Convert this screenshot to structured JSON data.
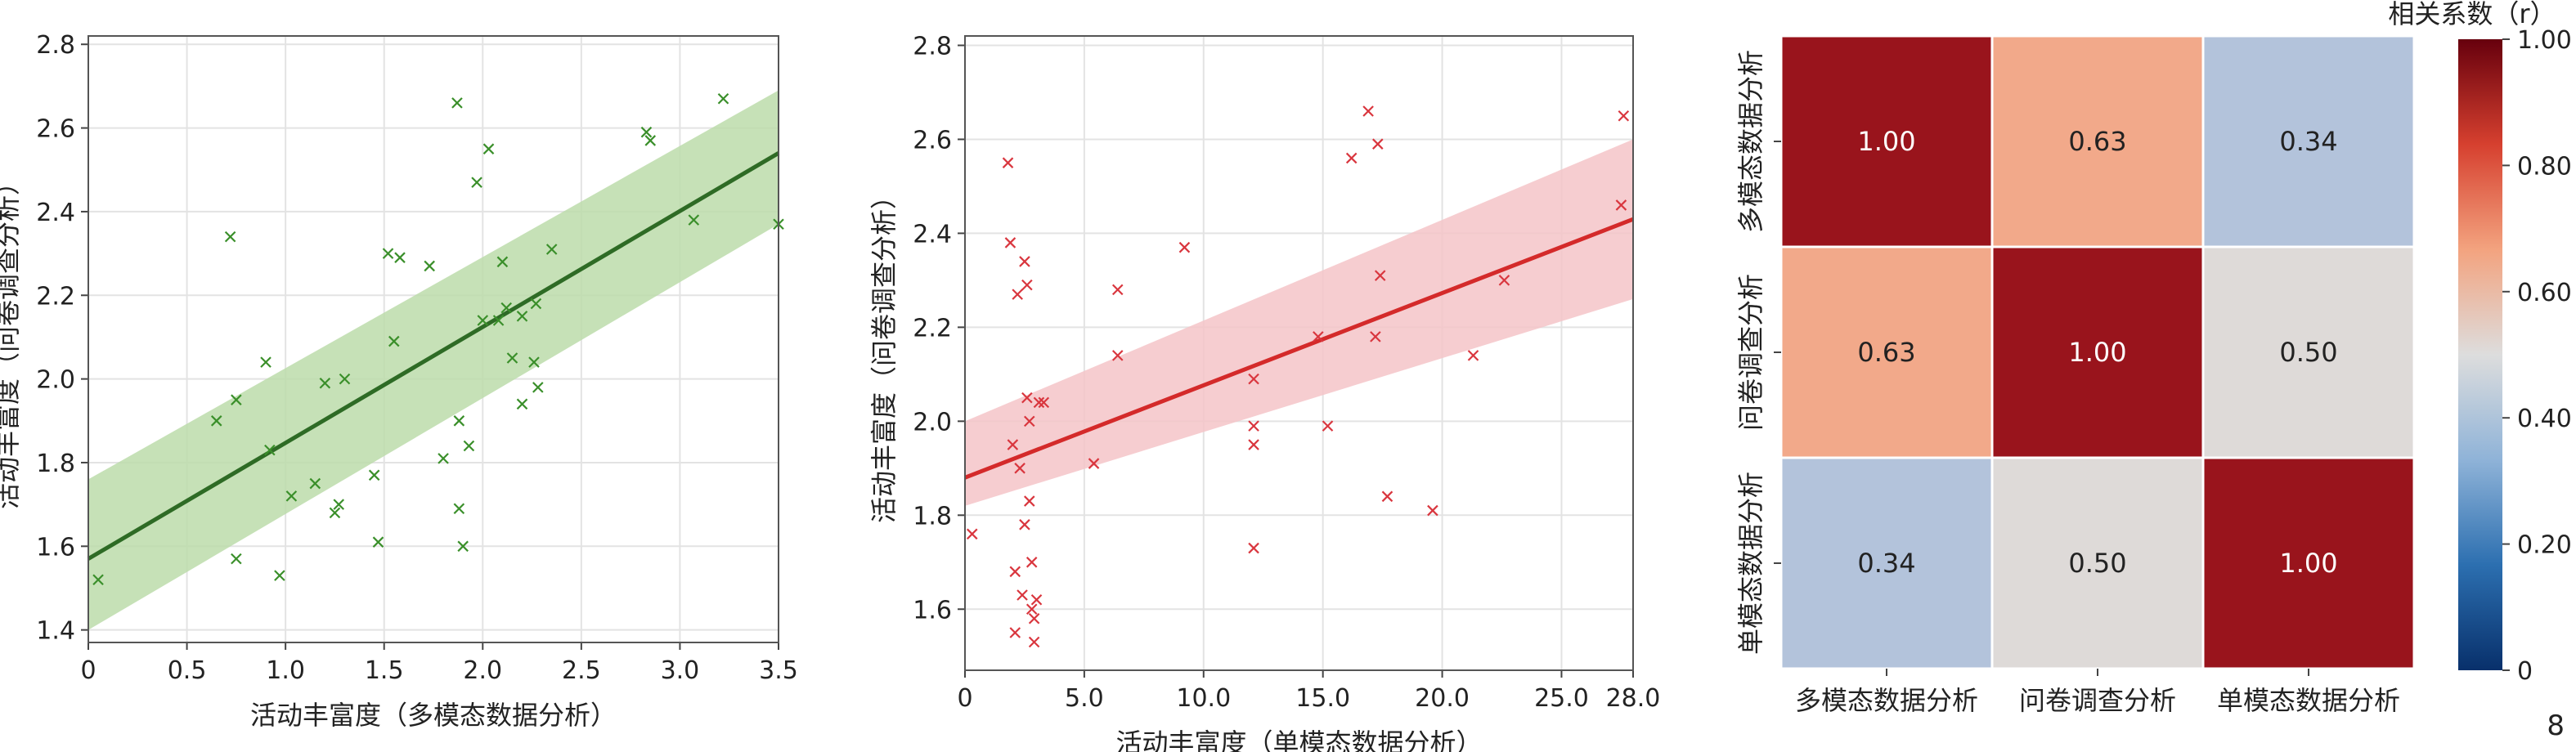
{
  "page_number": "8",
  "chart_data": [
    {
      "type": "scatter",
      "xlabel": "活动丰富度（多模态数据分析）",
      "ylabel": "活动丰富度（问卷调查分析）",
      "xlim": [
        0,
        3.5
      ],
      "ylim": [
        1.37,
        2.82
      ],
      "x_ticks": [
        "0",
        "0.5",
        "1.0",
        "1.5",
        "2.0",
        "2.5",
        "3.0",
        "3.5"
      ],
      "y_ticks": [
        "1.4",
        "1.6",
        "1.8",
        "2.0",
        "2.2",
        "2.4",
        "2.6",
        "2.8"
      ],
      "grid": true,
      "marker": "x",
      "color": "#3a8f2a",
      "band_color": "#bcdcaa",
      "line_color": "#2e6b25",
      "points": [
        [
          0.05,
          1.52
        ],
        [
          0.65,
          1.9
        ],
        [
          0.72,
          2.34
        ],
        [
          0.75,
          1.95
        ],
        [
          0.75,
          1.57
        ],
        [
          0.9,
          2.04
        ],
        [
          0.92,
          1.83
        ],
        [
          0.97,
          1.53
        ],
        [
          1.03,
          1.72
        ],
        [
          1.15,
          1.75
        ],
        [
          1.2,
          1.99
        ],
        [
          1.25,
          1.68
        ],
        [
          1.27,
          1.7
        ],
        [
          1.3,
          2.0
        ],
        [
          1.45,
          1.77
        ],
        [
          1.47,
          1.61
        ],
        [
          1.52,
          2.3
        ],
        [
          1.55,
          2.09
        ],
        [
          1.58,
          2.29
        ],
        [
          1.73,
          2.27
        ],
        [
          1.8,
          1.81
        ],
        [
          1.87,
          2.66
        ],
        [
          1.88,
          1.9
        ],
        [
          1.88,
          1.69
        ],
        [
          1.9,
          1.6
        ],
        [
          1.93,
          1.84
        ],
        [
          1.97,
          2.47
        ],
        [
          2.0,
          2.14
        ],
        [
          2.03,
          2.55
        ],
        [
          2.08,
          2.14
        ],
        [
          2.1,
          2.28
        ],
        [
          2.12,
          2.17
        ],
        [
          2.15,
          2.05
        ],
        [
          2.2,
          2.15
        ],
        [
          2.2,
          1.94
        ],
        [
          2.26,
          2.04
        ],
        [
          2.27,
          2.18
        ],
        [
          2.28,
          1.98
        ],
        [
          2.35,
          2.31
        ],
        [
          2.83,
          2.59
        ],
        [
          2.85,
          2.57
        ],
        [
          3.07,
          2.38
        ],
        [
          3.22,
          2.67
        ],
        [
          3.5,
          2.37
        ]
      ],
      "fit": {
        "x0": 0,
        "y0": 1.57,
        "x1": 3.5,
        "y1": 2.54
      },
      "band": {
        "x": [
          0,
          3.5
        ],
        "lower": [
          1.4,
          2.37
        ],
        "upper": [
          1.76,
          2.69
        ]
      }
    },
    {
      "type": "scatter",
      "xlabel": "活动丰富度（单模态数据分析）",
      "ylabel": "活动丰富度（问卷调查分析）",
      "xlim": [
        0,
        28
      ],
      "ylim": [
        1.47,
        2.82
      ],
      "x_ticks": [
        "0",
        "5.0",
        "10.0",
        "15.0",
        "20.0",
        "25.0",
        "28.0"
      ],
      "x_tick_values": [
        0,
        5,
        10,
        15,
        20,
        25,
        28
      ],
      "y_ticks": [
        "1.6",
        "1.8",
        "2.0",
        "2.2",
        "2.4",
        "2.6",
        "2.8"
      ],
      "grid": true,
      "marker": "x",
      "color": "#d9363e",
      "band_color": "#f4c4c8",
      "line_color": "#d42a2a",
      "points": [
        [
          0.3,
          1.76
        ],
        [
          1.8,
          2.55
        ],
        [
          1.9,
          2.38
        ],
        [
          2.0,
          1.95
        ],
        [
          2.1,
          1.68
        ],
        [
          2.1,
          1.55
        ],
        [
          2.2,
          2.27
        ],
        [
          2.3,
          1.9
        ],
        [
          2.4,
          1.63
        ],
        [
          2.5,
          1.78
        ],
        [
          2.5,
          2.34
        ],
        [
          2.6,
          2.29
        ],
        [
          2.6,
          2.05
        ],
        [
          2.7,
          1.83
        ],
        [
          2.7,
          2.0
        ],
        [
          2.8,
          1.7
        ],
        [
          2.8,
          1.6
        ],
        [
          2.9,
          1.53
        ],
        [
          2.9,
          1.58
        ],
        [
          3.0,
          1.62
        ],
        [
          3.1,
          2.04
        ],
        [
          3.3,
          2.04
        ],
        [
          5.4,
          1.91
        ],
        [
          6.4,
          2.28
        ],
        [
          6.4,
          2.14
        ],
        [
          9.2,
          2.37
        ],
        [
          12.1,
          1.73
        ],
        [
          12.1,
          1.95
        ],
        [
          12.1,
          1.99
        ],
        [
          12.1,
          2.09
        ],
        [
          14.8,
          2.18
        ],
        [
          15.2,
          1.99
        ],
        [
          16.2,
          2.56
        ],
        [
          16.9,
          2.66
        ],
        [
          17.2,
          2.18
        ],
        [
          17.3,
          2.59
        ],
        [
          17.4,
          2.31
        ],
        [
          17.7,
          1.84
        ],
        [
          19.6,
          1.81
        ],
        [
          21.3,
          2.14
        ],
        [
          22.6,
          2.3
        ],
        [
          27.5,
          2.46
        ],
        [
          27.6,
          2.65
        ]
      ],
      "fit": {
        "x0": 0,
        "y0": 1.88,
        "x1": 28,
        "y1": 2.43
      },
      "band": {
        "x": [
          0,
          28
        ],
        "lower": [
          1.82,
          2.26
        ],
        "upper": [
          2.0,
          2.6
        ]
      }
    },
    {
      "type": "heatmap",
      "row_labels": [
        "多模态数据分析",
        "问卷调查分析",
        "单模态数据分析"
      ],
      "col_labels": [
        "多模态数据分析",
        "问卷调查分析",
        "单模态数据分析"
      ],
      "values": [
        [
          1.0,
          0.63,
          0.34
        ],
        [
          0.63,
          1.0,
          0.5
        ],
        [
          0.34,
          0.5,
          1.0
        ]
      ],
      "value_labels": [
        [
          "1.00",
          "0.63",
          "0.34"
        ],
        [
          "0.63",
          "1.00",
          "0.50"
        ],
        [
          "0.34",
          "0.50",
          "1.00"
        ]
      ],
      "colorbar": {
        "title": "相关系数（r）",
        "range": [
          0,
          1
        ],
        "ticks": [
          "0",
          "0.20",
          "0.40",
          "0.60",
          "0.80",
          "1.00"
        ],
        "tick_values": [
          0,
          0.2,
          0.4,
          0.6,
          0.8,
          1.0
        ]
      },
      "cell_colors": [
        [
          "#99141c",
          "#f2a98a",
          "#b3c3db"
        ],
        [
          "#f2a98a",
          "#99141c",
          "#dedad8"
        ],
        [
          "#b3c3db",
          "#dedad8",
          "#99141c"
        ]
      ],
      "text_colors": [
        [
          "#ffffff",
          "#222222",
          "#222222"
        ],
        [
          "#222222",
          "#ffffff",
          "#222222"
        ],
        [
          "#222222",
          "#222222",
          "#ffffff"
        ]
      ],
      "colormap_stops": [
        "#08306b",
        "#2c6fb0",
        "#8fb3d8",
        "#dddddd",
        "#f3a37f",
        "#d6402f",
        "#67000d"
      ]
    }
  ]
}
